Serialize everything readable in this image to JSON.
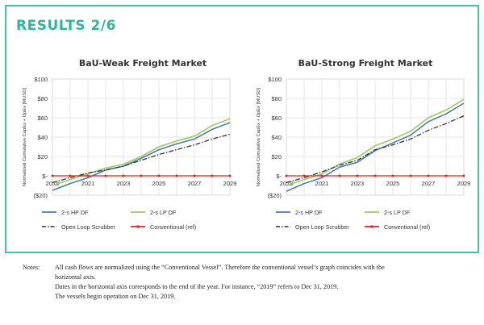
{
  "page": {
    "title": "RESULTS 2/6"
  },
  "legend": [
    {
      "name": "2-s HP DF",
      "color": "#4a7abf",
      "dash": "solid"
    },
    {
      "name": "2-s LP DF",
      "color": "#9bcb5c",
      "dash": "solid"
    },
    {
      "name": "Open Loop Scrubber",
      "color": "#333333",
      "dash": "dashdot"
    },
    {
      "name": "Conventional (ref)",
      "color": "#e02020",
      "dash": "solid-marker"
    }
  ],
  "chart_data": [
    {
      "type": "line",
      "title": "BaU-Weak Freight Market",
      "ylabel": "Normalized Cumulative CapEx + OpEx [MUSD]",
      "ylim": [
        -20,
        100
      ],
      "yticks": [
        "$100",
        "$80",
        "$60",
        "$40",
        "$20",
        "$-",
        "($20)"
      ],
      "ytick_values": [
        100,
        80,
        60,
        40,
        20,
        0,
        -20
      ],
      "xlim": [
        2019,
        2029
      ],
      "xticks": [
        "2019",
        "2021",
        "2023",
        "2025",
        "2027",
        "2029"
      ],
      "xtick_values": [
        2019,
        2021,
        2023,
        2025,
        2027,
        2029
      ],
      "grid": true,
      "legend_position": "bottom",
      "x": [
        2019,
        2020,
        2021,
        2022,
        2023,
        2024,
        2025,
        2026,
        2027,
        2028,
        2029
      ],
      "series": [
        {
          "name": "2-s HP DF",
          "values": [
            -15,
            -8,
            -2,
            6,
            10,
            18,
            27,
            33,
            38,
            48,
            55
          ]
        },
        {
          "name": "2-s LP DF",
          "values": [
            -10,
            -4,
            2,
            8,
            12,
            20,
            30,
            36,
            41,
            52,
            59
          ]
        },
        {
          "name": "Open Loop Scrubber",
          "values": [
            -7,
            -2,
            3,
            6,
            10,
            16,
            22,
            27,
            32,
            38,
            43
          ]
        },
        {
          "name": "Conventional (ref)",
          "values": [
            0,
            0,
            0,
            0,
            0,
            0,
            0,
            0,
            0,
            0,
            0
          ]
        }
      ]
    },
    {
      "type": "line",
      "title": "BaU-Strong Freight Market",
      "ylabel": "Normalized Cumulative CapEx + OpEx [MUSD]",
      "ylim": [
        -20,
        100
      ],
      "yticks": [
        "$100",
        "$80",
        "$60",
        "$40",
        "$20",
        "$-",
        "($20)"
      ],
      "ytick_values": [
        100,
        80,
        60,
        40,
        20,
        0,
        -20
      ],
      "xlim": [
        2019,
        2029
      ],
      "xticks": [
        "2019",
        "2021",
        "2023",
        "2025",
        "2027",
        "2029"
      ],
      "xtick_values": [
        2019,
        2021,
        2023,
        2025,
        2027,
        2029
      ],
      "grid": true,
      "legend_position": "bottom",
      "x": [
        2019,
        2020,
        2021,
        2022,
        2023,
        2024,
        2025,
        2026,
        2027,
        2028,
        2029
      ],
      "series": [
        {
          "name": "2-s HP DF",
          "values": [
            -16,
            -8,
            -2,
            9,
            14,
            26,
            34,
            42,
            56,
            64,
            75
          ]
        },
        {
          "name": "2-s LP DF",
          "values": [
            -10,
            -4,
            2,
            12,
            19,
            31,
            38,
            46,
            60,
            68,
            79
          ]
        },
        {
          "name": "Open Loop Scrubber",
          "values": [
            -7,
            -2,
            4,
            11,
            16,
            27,
            32,
            38,
            47,
            54,
            62
          ]
        },
        {
          "name": "Conventional (ref)",
          "values": [
            0,
            0,
            0,
            0,
            0,
            0,
            0,
            0,
            0,
            0,
            0
          ]
        }
      ]
    }
  ],
  "notes": {
    "label": "Notes:",
    "lines": [
      "All cash flows are normalized using the “Conventional Vessel”. Therefore the conventional vessel’s graph coincides with the",
      "horizontal axis.",
      "Dates in the horizontal axis corresponds to the end of the year. For instance, “2019” refers to Dec 31, 2019.",
      "The vessels begin operation on Dec 31, 2019."
    ]
  }
}
